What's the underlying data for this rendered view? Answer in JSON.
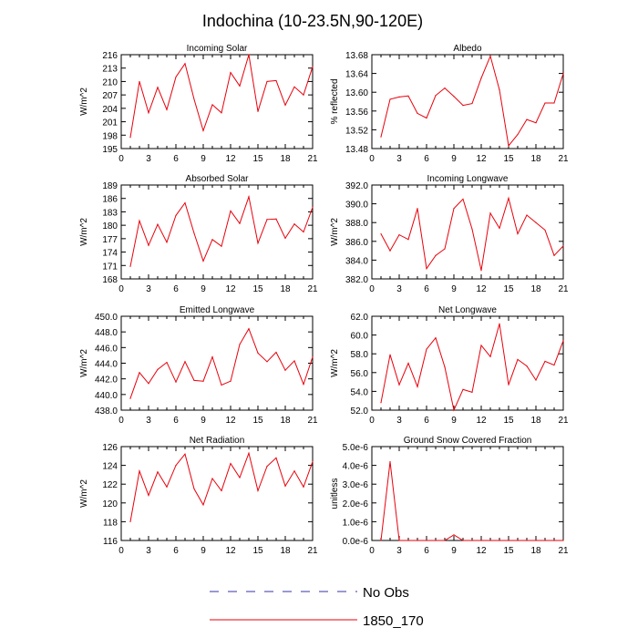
{
  "figure": {
    "title": "Indochina (10-23.5N,90-120E)",
    "legend": [
      {
        "label": "No Obs",
        "color": "#3333aa",
        "dash": "dashed"
      },
      {
        "label": "1850_170",
        "color": "#e8000b",
        "dash": "solid"
      }
    ]
  },
  "chart_data": [
    {
      "type": "line",
      "title": "Incoming Solar",
      "ylabel": "W/m^2",
      "xlim": [
        0,
        21
      ],
      "xticks": [
        0,
        3,
        6,
        9,
        12,
        15,
        18,
        21
      ],
      "ylim": [
        195,
        216
      ],
      "yticks": [
        "195",
        "198",
        "201",
        "204",
        "207",
        "210",
        "213",
        "216"
      ],
      "series": [
        {
          "name": "1850_170",
          "x": [
            1,
            2,
            3,
            4,
            5,
            6,
            7,
            8,
            9,
            10,
            11,
            12,
            13,
            14,
            15,
            16,
            17,
            18,
            19,
            20,
            21
          ],
          "values": [
            197.5,
            210.0,
            203.0,
            208.7,
            203.7,
            211.0,
            214.0,
            206.0,
            199.0,
            204.8,
            203.0,
            212.0,
            209.0,
            216.0,
            203.3,
            210.0,
            210.2,
            204.7,
            208.8,
            207.0,
            213.3
          ]
        }
      ]
    },
    {
      "type": "line",
      "title": "Albedo",
      "ylabel": "% reflected",
      "xlim": [
        0,
        21
      ],
      "xticks": [
        0,
        3,
        6,
        9,
        12,
        15,
        18,
        21
      ],
      "ylim": [
        13.48,
        13.68
      ],
      "yticks": [
        "13.48",
        "13.52",
        "13.56",
        "13.60",
        "13.64",
        "13.68"
      ],
      "series": [
        {
          "name": "1850_170",
          "x": [
            1,
            2,
            3,
            4,
            5,
            6,
            7,
            8,
            9,
            10,
            11,
            12,
            13,
            14,
            15,
            16,
            17,
            18,
            19,
            20,
            21
          ],
          "values": [
            13.505,
            13.585,
            13.59,
            13.592,
            13.555,
            13.545,
            13.593,
            13.609,
            13.591,
            13.572,
            13.576,
            13.63,
            13.677,
            13.605,
            13.486,
            13.51,
            13.542,
            13.535,
            13.577,
            13.577,
            13.64
          ]
        }
      ]
    },
    {
      "type": "line",
      "title": "Absorbed Solar",
      "ylabel": "W/m^2",
      "xlim": [
        0,
        21
      ],
      "xticks": [
        0,
        3,
        6,
        9,
        12,
        15,
        18,
        21
      ],
      "ylim": [
        168,
        189
      ],
      "yticks": [
        "168",
        "171",
        "174",
        "177",
        "180",
        "183",
        "186",
        "189"
      ],
      "series": [
        {
          "name": "1850_170",
          "x": [
            1,
            2,
            3,
            4,
            5,
            6,
            7,
            8,
            9,
            10,
            11,
            12,
            13,
            14,
            15,
            16,
            17,
            18,
            19,
            20,
            21
          ],
          "values": [
            170.8,
            181.0,
            175.5,
            180.2,
            176.2,
            182.2,
            185.0,
            178.2,
            172.0,
            176.8,
            175.3,
            183.2,
            180.4,
            186.4,
            176.0,
            181.3,
            181.4,
            177.1,
            180.3,
            178.5,
            184.0
          ]
        }
      ]
    },
    {
      "type": "line",
      "title": "Incoming Longwave",
      "ylabel": "W/m^2",
      "xlim": [
        0,
        21
      ],
      "xticks": [
        0,
        3,
        6,
        9,
        12,
        15,
        18,
        21
      ],
      "ylim": [
        382.0,
        392.0
      ],
      "yticks": [
        "382.0",
        "384.0",
        "386.0",
        "388.0",
        "390.0",
        "392.0"
      ],
      "series": [
        {
          "name": "1850_170",
          "x": [
            1,
            2,
            3,
            4,
            5,
            6,
            7,
            8,
            9,
            10,
            11,
            12,
            13,
            14,
            15,
            16,
            17,
            18,
            19,
            20,
            21
          ],
          "values": [
            386.8,
            385.0,
            386.7,
            386.2,
            389.5,
            383.1,
            384.5,
            385.2,
            389.5,
            390.5,
            387.3,
            382.9,
            389.0,
            387.4,
            390.6,
            386.8,
            388.8,
            388.0,
            387.2,
            384.5,
            385.5
          ]
        }
      ]
    },
    {
      "type": "line",
      "title": "Emitted Longwave",
      "ylabel": "W/m^2",
      "xlim": [
        0,
        21
      ],
      "xticks": [
        0,
        3,
        6,
        9,
        12,
        15,
        18,
        21
      ],
      "ylim": [
        438.0,
        450.0
      ],
      "yticks": [
        "438.0",
        "440.0",
        "442.0",
        "444.0",
        "446.0",
        "448.0",
        "450.0"
      ],
      "series": [
        {
          "name": "1850_170",
          "x": [
            1,
            2,
            3,
            4,
            5,
            6,
            7,
            8,
            9,
            10,
            11,
            12,
            13,
            14,
            15,
            16,
            17,
            18,
            19,
            20,
            21
          ],
          "values": [
            439.5,
            442.8,
            441.4,
            443.2,
            444.1,
            441.6,
            444.2,
            441.8,
            441.7,
            444.8,
            441.2,
            441.7,
            446.4,
            448.4,
            445.3,
            444.2,
            445.4,
            443.1,
            444.3,
            441.3,
            444.8
          ]
        }
      ]
    },
    {
      "type": "line",
      "title": "Net Longwave",
      "ylabel": "W/m^2",
      "xlim": [
        0,
        21
      ],
      "xticks": [
        0,
        3,
        6,
        9,
        12,
        15,
        18,
        21
      ],
      "ylim": [
        52.0,
        62.0
      ],
      "yticks": [
        "52.0",
        "54.0",
        "56.0",
        "58.0",
        "60.0",
        "62.0"
      ],
      "series": [
        {
          "name": "1850_170",
          "x": [
            1,
            2,
            3,
            4,
            5,
            6,
            7,
            8,
            9,
            10,
            11,
            12,
            13,
            14,
            15,
            16,
            17,
            18,
            19,
            20,
            21
          ],
          "values": [
            52.8,
            57.9,
            54.7,
            57.0,
            54.5,
            58.5,
            59.7,
            56.6,
            52.0,
            54.2,
            53.9,
            58.9,
            57.7,
            61.2,
            54.7,
            57.4,
            56.7,
            55.2,
            57.2,
            56.8,
            59.4
          ]
        }
      ]
    },
    {
      "type": "line",
      "title": "Net Radiation",
      "ylabel": "W/m^2",
      "xlim": [
        0,
        21
      ],
      "xticks": [
        0,
        3,
        6,
        9,
        12,
        15,
        18,
        21
      ],
      "ylim": [
        116,
        126
      ],
      "yticks": [
        "116",
        "118",
        "120",
        "122",
        "124",
        "126"
      ],
      "series": [
        {
          "name": "1850_170",
          "x": [
            1,
            2,
            3,
            4,
            5,
            6,
            7,
            8,
            9,
            10,
            11,
            12,
            13,
            14,
            15,
            16,
            17,
            18,
            19,
            20,
            21
          ],
          "values": [
            118.0,
            123.4,
            120.8,
            123.3,
            121.7,
            124.0,
            125.2,
            121.5,
            119.8,
            122.6,
            121.3,
            124.2,
            122.7,
            125.3,
            121.3,
            123.9,
            124.8,
            121.8,
            123.4,
            121.7,
            124.4
          ]
        }
      ]
    },
    {
      "type": "line",
      "title": "Ground Snow Covered Fraction",
      "ylabel": "unitless",
      "xlim": [
        0,
        21
      ],
      "xticks": [
        0,
        3,
        6,
        9,
        12,
        15,
        18,
        21
      ],
      "ylim": [
        0,
        5e-06
      ],
      "yticks": [
        "0.0e-6",
        "1.0e-6",
        "2.0e-6",
        "3.0e-6",
        "4.0e-6",
        "5.0e-6"
      ],
      "series": [
        {
          "name": "1850_170",
          "x": [
            1,
            2,
            3,
            4,
            5,
            6,
            7,
            8,
            9,
            10,
            11,
            12,
            13,
            14,
            15,
            16,
            17,
            18,
            19,
            20,
            21
          ],
          "values": [
            0,
            4.2e-06,
            0,
            0,
            0,
            0,
            0,
            0,
            3e-07,
            0,
            0,
            0,
            0,
            0,
            0,
            0,
            0,
            0,
            0,
            0,
            0
          ]
        }
      ]
    }
  ]
}
